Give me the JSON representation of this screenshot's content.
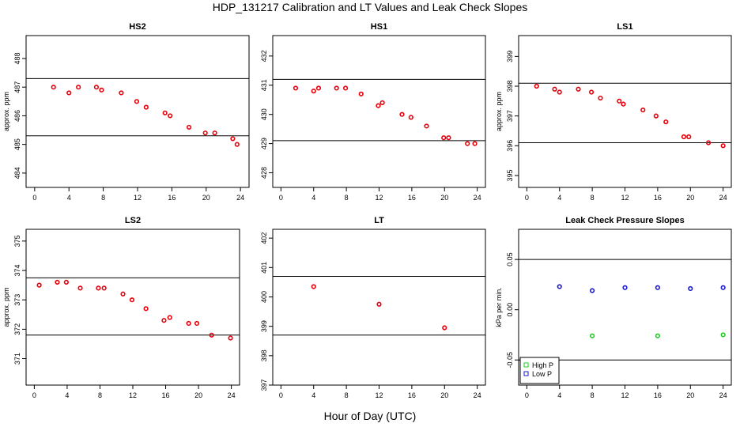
{
  "figure": {
    "title": "HDP_131217  Calibration and LT Values and Leak Check Slopes",
    "xlabel": "Hour of Day (UTC)"
  },
  "colors": {
    "red": "#e8000b",
    "green": "#22cc22",
    "blue": "#1a1acc",
    "line": "#000000"
  },
  "chart_data": [
    {
      "type": "scatter",
      "title": "HS2",
      "xlabel": "",
      "ylabel": "approx. ppm",
      "xlim": [
        -1,
        25
      ],
      "ylim": [
        483.5,
        488.8
      ],
      "xticks": [
        0,
        4,
        8,
        12,
        16,
        20,
        24
      ],
      "yticks": [
        484,
        485,
        486,
        487,
        488
      ],
      "hlines": [
        487.3,
        485.3
      ],
      "grid": false,
      "series": [
        {
          "color": "red",
          "x": [
            2.2,
            4.0,
            5.1,
            7.2,
            7.8,
            10.1,
            11.9,
            13.0,
            15.2,
            15.8,
            18.0,
            19.9,
            21.0,
            23.1,
            23.6
          ],
          "y": [
            487.0,
            486.8,
            487.0,
            487.0,
            486.9,
            486.8,
            486.5,
            486.3,
            486.1,
            486.0,
            485.6,
            485.4,
            485.4,
            485.2,
            485.0
          ]
        }
      ]
    },
    {
      "type": "scatter",
      "title": "HS1",
      "xlabel": "",
      "ylabel": "",
      "xlim": [
        -1,
        25
      ],
      "ylim": [
        427.5,
        432.7
      ],
      "xticks": [
        0,
        4,
        8,
        12,
        16,
        20,
        24
      ],
      "yticks": [
        428,
        429,
        430,
        431,
        432
      ],
      "hlines": [
        431.2,
        429.1
      ],
      "grid": false,
      "series": [
        {
          "color": "red",
          "x": [
            1.8,
            4.0,
            4.6,
            6.8,
            7.9,
            9.8,
            11.9,
            12.4,
            14.8,
            15.9,
            17.8,
            19.9,
            20.5,
            22.8,
            23.7
          ],
          "y": [
            430.9,
            430.8,
            430.9,
            430.9,
            430.9,
            430.7,
            430.3,
            430.4,
            430.0,
            429.9,
            429.6,
            429.2,
            429.2,
            429.0,
            429.0
          ]
        }
      ]
    },
    {
      "type": "scatter",
      "title": "LS1",
      "xlabel": "",
      "ylabel": "approx. ppm",
      "xlim": [
        -1,
        25
      ],
      "ylim": [
        394.6,
        399.7
      ],
      "xticks": [
        0,
        4,
        8,
        12,
        16,
        20,
        24
      ],
      "yticks": [
        395,
        396,
        397,
        398,
        399
      ],
      "hlines": [
        398.1,
        396.1
      ],
      "grid": false,
      "series": [
        {
          "color": "red",
          "x": [
            1.2,
            3.4,
            4.0,
            6.3,
            7.9,
            9.0,
            11.3,
            11.8,
            14.2,
            15.8,
            17.0,
            19.2,
            19.8,
            22.2,
            24.0
          ],
          "y": [
            398.0,
            397.9,
            397.8,
            397.9,
            397.8,
            397.6,
            397.5,
            397.4,
            397.2,
            397.0,
            396.8,
            396.3,
            396.3,
            396.1,
            396.0
          ]
        }
      ]
    },
    {
      "type": "scatter",
      "title": "LS2",
      "xlabel": "",
      "ylabel": "approx. ppm",
      "xlim": [
        -1,
        25
      ],
      "ylim": [
        370.1,
        375.4
      ],
      "xticks": [
        0,
        4,
        8,
        12,
        16,
        20,
        24
      ],
      "yticks": [
        371,
        372,
        373,
        374,
        375
      ],
      "hlines": [
        373.75,
        371.8
      ],
      "grid": false,
      "series": [
        {
          "color": "red",
          "x": [
            0.6,
            2.8,
            3.9,
            5.6,
            7.8,
            8.5,
            10.8,
            11.9,
            13.6,
            15.8,
            16.5,
            18.8,
            19.8,
            21.6,
            23.9
          ],
          "y": [
            373.5,
            373.6,
            373.6,
            373.4,
            373.4,
            373.4,
            373.2,
            373.0,
            372.7,
            372.3,
            372.4,
            372.2,
            372.2,
            371.8,
            371.7
          ]
        }
      ]
    },
    {
      "type": "scatter",
      "title": "LT",
      "xlabel": "",
      "ylabel": "",
      "xlim": [
        -1,
        25
      ],
      "ylim": [
        397.0,
        402.3
      ],
      "xticks": [
        0,
        4,
        8,
        12,
        16,
        20,
        24
      ],
      "yticks": [
        397,
        398,
        399,
        400,
        401,
        402
      ],
      "hlines": [
        400.7,
        398.7
      ],
      "grid": false,
      "series": [
        {
          "color": "red",
          "x": [
            4.0,
            12.0,
            20.0
          ],
          "y": [
            400.35,
            399.75,
            398.95
          ]
        }
      ]
    },
    {
      "type": "scatter",
      "title": "Leak Check Pressure Slopes",
      "xlabel": "",
      "ylabel": "kPa per min.",
      "xlim": [
        -1,
        25
      ],
      "ylim": [
        -0.075,
        0.08
      ],
      "xticks": [
        0,
        4,
        8,
        12,
        16,
        20,
        24
      ],
      "yticks": [
        -0.05,
        0.0,
        0.05
      ],
      "ytick_labels": [
        "-0.05",
        "0.00",
        "0.05"
      ],
      "hlines": [
        0.05,
        -0.05
      ],
      "grid": false,
      "legend": "bottom-left",
      "series": [
        {
          "name": "High P",
          "color": "green",
          "x": [
            8,
            16,
            24
          ],
          "y": [
            -0.026,
            -0.026,
            -0.025
          ]
        },
        {
          "name": "Low P",
          "color": "blue",
          "x": [
            4,
            8,
            12,
            16,
            20,
            24
          ],
          "y": [
            0.023,
            0.019,
            0.022,
            0.022,
            0.021,
            0.022
          ]
        }
      ]
    }
  ]
}
